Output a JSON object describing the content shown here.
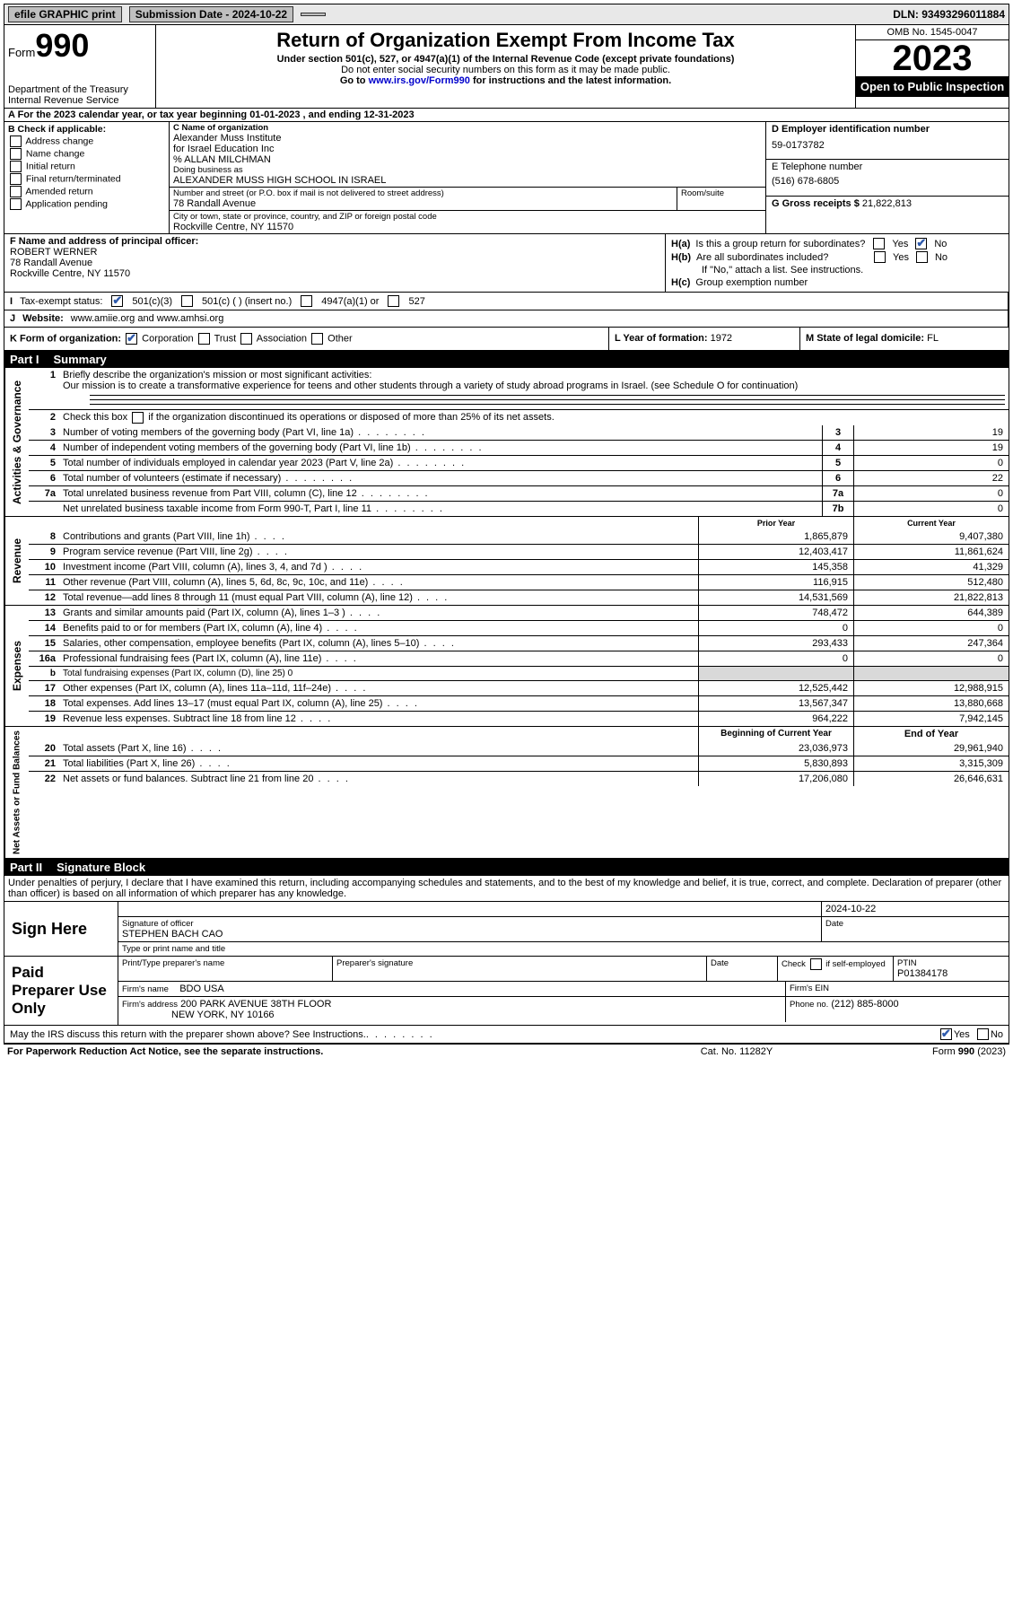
{
  "topbar": {
    "efile": "efile GRAPHIC print",
    "submission": "Submission Date - 2024-10-22",
    "dln": "DLN: 93493296011884"
  },
  "header": {
    "form_prefix": "Form",
    "form_num": "990",
    "title": "Return of Organization Exempt From Income Tax",
    "subtitle": "Under section 501(c), 527, or 4947(a)(1) of the Internal Revenue Code (except private foundations)",
    "note1": "Do not enter social security numbers on this form as it may be made public.",
    "note2_pre": "Go to ",
    "note2_link": "www.irs.gov/Form990",
    "note2_post": " for instructions and the latest information.",
    "dept": "Department of the Treasury",
    "irs": "Internal Revenue Service",
    "omb": "OMB No. 1545-0047",
    "year": "2023",
    "public": "Open to Public Inspection"
  },
  "row_a": "A For the 2023 calendar year, or tax year beginning 01-01-2023   , and ending 12-31-2023",
  "section_b": {
    "heading": "B Check if applicable:",
    "opts": [
      "Address change",
      "Name change",
      "Initial return",
      "Final return/terminated",
      "Amended return",
      "Application pending"
    ]
  },
  "section_c": {
    "lbl_name": "C Name of organization",
    "name1": "Alexander Muss Institute",
    "name2": "for Israel Education Inc",
    "name3": "% ALLAN MILCHMAN",
    "lbl_dba": "Doing business as",
    "dba": "ALEXANDER MUSS HIGH SCHOOL IN ISRAEL",
    "lbl_street": "Number and street (or P.O. box if mail is not delivered to street address)",
    "street": "78 Randall Avenue",
    "lbl_room": "Room/suite",
    "lbl_city": "City or town, state or province, country, and ZIP or foreign postal code",
    "city": "Rockville Centre, NY  11570"
  },
  "section_d": {
    "lbl": "D Employer identification number",
    "val": "59-0173782"
  },
  "section_e": {
    "lbl": "E Telephone number",
    "val": "(516) 678-6805"
  },
  "section_g": {
    "lbl": "G Gross receipts $",
    "val": "21,822,813"
  },
  "section_f": {
    "lbl": "F  Name and address of principal officer:",
    "name": "ROBERT WERNER",
    "street": "78 Randall Avenue",
    "city": "Rockville Centre, NY  11570"
  },
  "section_h": {
    "ha": "Is this a group return for subordinates?",
    "hb": "Are all subordinates included?",
    "hb_note": "If \"No,\" attach a list. See instructions.",
    "hc": "Group exemption number",
    "yes": "Yes",
    "no": "No"
  },
  "section_i": {
    "lbl": "Tax-exempt status:",
    "o1": "501(c)(3)",
    "o2": "501(c) (  ) (insert no.)",
    "o3": "4947(a)(1) or",
    "o4": "527"
  },
  "section_j": {
    "lbl": "Website:",
    "val": "www.amiie.org and www.amhsi.org"
  },
  "section_k": {
    "lbl": "K Form of organization:",
    "opts": [
      "Corporation",
      "Trust",
      "Association",
      "Other"
    ],
    "l_lbl": "L Year of formation:",
    "l_val": "1972",
    "m_lbl": "M State of legal domicile:",
    "m_val": "FL"
  },
  "parts": {
    "p1": "Part I",
    "p1t": "Summary",
    "p2": "Part II",
    "p2t": "Signature Block"
  },
  "summary": {
    "q1": "Briefly describe the organization's mission or most significant activities:",
    "q1_text": "Our mission is to create a transformative experience for teens and other students through a variety of study abroad programs in Israel. (see Schedule O for continuation)",
    "q2": "Check this box      if the organization discontinued its operations or disposed of more than 25% of its net assets.",
    "lines_gov": [
      {
        "n": "3",
        "d": "Number of voting members of the governing body (Part VI, line 1a)",
        "box": "3",
        "v": "19"
      },
      {
        "n": "4",
        "d": "Number of independent voting members of the governing body (Part VI, line 1b)",
        "box": "4",
        "v": "19"
      },
      {
        "n": "5",
        "d": "Total number of individuals employed in calendar year 2023 (Part V, line 2a)",
        "box": "5",
        "v": "0"
      },
      {
        "n": "6",
        "d": "Total number of volunteers (estimate if necessary)",
        "box": "6",
        "v": "22"
      },
      {
        "n": "7a",
        "d": "Total unrelated business revenue from Part VIII, column (C), line 12",
        "box": "7a",
        "v": "0"
      },
      {
        "n": "",
        "d": "Net unrelated business taxable income from Form 990-T, Part I, line 11",
        "box": "7b",
        "v": "0"
      }
    ],
    "hdr_prior": "Prior Year",
    "hdr_curr": "Current Year",
    "lines_rev": [
      {
        "n": "8",
        "d": "Contributions and grants (Part VIII, line 1h)",
        "p": "1,865,879",
        "c": "9,407,380"
      },
      {
        "n": "9",
        "d": "Program service revenue (Part VIII, line 2g)",
        "p": "12,403,417",
        "c": "11,861,624"
      },
      {
        "n": "10",
        "d": "Investment income (Part VIII, column (A), lines 3, 4, and 7d )",
        "p": "145,358",
        "c": "41,329"
      },
      {
        "n": "11",
        "d": "Other revenue (Part VIII, column (A), lines 5, 6d, 8c, 9c, 10c, and 11e)",
        "p": "116,915",
        "c": "512,480"
      },
      {
        "n": "12",
        "d": "Total revenue—add lines 8 through 11 (must equal Part VIII, column (A), line 12)",
        "p": "14,531,569",
        "c": "21,822,813"
      }
    ],
    "lines_exp": [
      {
        "n": "13",
        "d": "Grants and similar amounts paid (Part IX, column (A), lines 1–3 )",
        "p": "748,472",
        "c": "644,389"
      },
      {
        "n": "14",
        "d": "Benefits paid to or for members (Part IX, column (A), line 4)",
        "p": "0",
        "c": "0"
      },
      {
        "n": "15",
        "d": "Salaries, other compensation, employee benefits (Part IX, column (A), lines 5–10)",
        "p": "293,433",
        "c": "247,364"
      },
      {
        "n": "16a",
        "d": "Professional fundraising fees (Part IX, column (A), line 11e)",
        "p": "0",
        "c": "0"
      },
      {
        "n": "b",
        "d": "Total fundraising expenses (Part IX, column (D), line 25) 0",
        "p": "",
        "c": "",
        "grey": true,
        "small": true
      },
      {
        "n": "17",
        "d": "Other expenses (Part IX, column (A), lines 11a–11d, 11f–24e)",
        "p": "12,525,442",
        "c": "12,988,915"
      },
      {
        "n": "18",
        "d": "Total expenses. Add lines 13–17 (must equal Part IX, column (A), line 25)",
        "p": "13,567,347",
        "c": "13,880,668"
      },
      {
        "n": "19",
        "d": "Revenue less expenses. Subtract line 18 from line 12",
        "p": "964,222",
        "c": "7,942,145"
      }
    ],
    "hdr_beg": "Beginning of Current Year",
    "hdr_end": "End of Year",
    "lines_net": [
      {
        "n": "20",
        "d": "Total assets (Part X, line 16)",
        "p": "23,036,973",
        "c": "29,961,940"
      },
      {
        "n": "21",
        "d": "Total liabilities (Part X, line 26)",
        "p": "5,830,893",
        "c": "3,315,309"
      },
      {
        "n": "22",
        "d": "Net assets or fund balances. Subtract line 21 from line 20",
        "p": "17,206,080",
        "c": "26,646,631"
      }
    ],
    "vlabels": {
      "gov": "Activities & Governance",
      "rev": "Revenue",
      "exp": "Expenses",
      "net": "Net Assets or Fund Balances"
    }
  },
  "sig_decl": "Under penalties of perjury, I declare that I have examined this return, including accompanying schedules and statements, and to the best of my knowledge and belief, it is true, correct, and complete. Declaration of preparer (other than officer) is based on all information of which preparer has any knowledge.",
  "sign_here": {
    "lbl": "Sign Here",
    "date": "2024-10-22",
    "sig_lbl": "Signature of officer",
    "name": "STEPHEN BACH  CAO",
    "name_lbl": "Type or print name and title",
    "date_lbl": "Date"
  },
  "paid_prep": {
    "lbl": "Paid Preparer Use Only",
    "h1": "Print/Type preparer's name",
    "h2": "Preparer's signature",
    "h3": "Date",
    "h4": "Check       if self-employed",
    "h5": "PTIN",
    "ptin": "P01384178",
    "firm_lbl": "Firm's name",
    "firm": "BDO USA",
    "ein_lbl": "Firm's EIN",
    "addr_lbl": "Firm's address",
    "addr1": "200 PARK AVENUE 38TH FLOOR",
    "addr2": "NEW YORK, NY  10166",
    "phone_lbl": "Phone no.",
    "phone": "(212) 885-8000"
  },
  "discuss": {
    "q": "May the IRS discuss this return with the preparer shown above? See Instructions.",
    "yes": "Yes",
    "no": "No"
  },
  "footer": {
    "f1": "For Paperwork Reduction Act Notice, see the separate instructions.",
    "f2": "Cat. No. 11282Y",
    "f3_pre": "Form ",
    "f3_b": "990",
    "f3_post": " (2023)"
  }
}
